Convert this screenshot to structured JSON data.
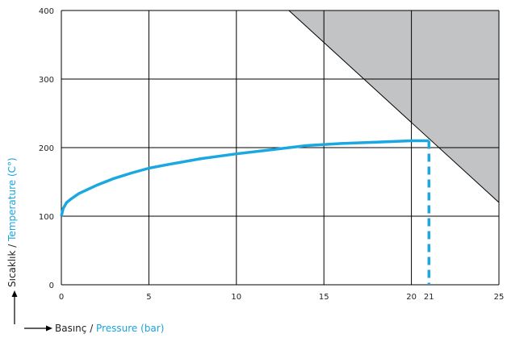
{
  "colors": {
    "curve": "#1ba8e0",
    "shaded_region": "#c2c3c5",
    "grid": "#000000",
    "accent_text": "#1aa3dc"
  },
  "chart_data": {
    "type": "line",
    "xlim": [
      0,
      25
    ],
    "ylim": [
      0,
      400
    ],
    "grid": true,
    "x_ticks": [
      "0",
      "5",
      "10",
      "15",
      "20",
      "21",
      "25"
    ],
    "x_tick_values": [
      0,
      5,
      10,
      15,
      20,
      21,
      25
    ],
    "y_ticks": [
      "0",
      "100",
      "200",
      "300",
      "400"
    ],
    "y_tick_values": [
      0,
      100,
      200,
      300,
      400
    ],
    "xlabel": {
      "prefix": "Basınç",
      "separator": " / ",
      "label": "Pressure (bar)"
    },
    "ylabel": {
      "prefix": "Sıcaklık",
      "separator": " / ",
      "label": "Temperature (C°)"
    },
    "series": [
      {
        "style": "solid",
        "x": [
          0,
          0.1,
          0.3,
          0.6,
          1,
          2,
          3,
          4,
          5,
          6,
          8,
          10,
          12,
          14,
          16,
          18,
          20,
          21
        ],
        "y": [
          100,
          111,
          120,
          126,
          133,
          145,
          155,
          163,
          170,
          175,
          184,
          191,
          197,
          203,
          206,
          208,
          210,
          210
        ]
      },
      {
        "style": "dashed",
        "x": [
          21,
          21
        ],
        "y": [
          210,
          0
        ]
      }
    ],
    "shaded_region": {
      "polygon": [
        [
          13,
          400
        ],
        [
          25,
          400
        ],
        [
          25,
          120
        ]
      ]
    }
  }
}
